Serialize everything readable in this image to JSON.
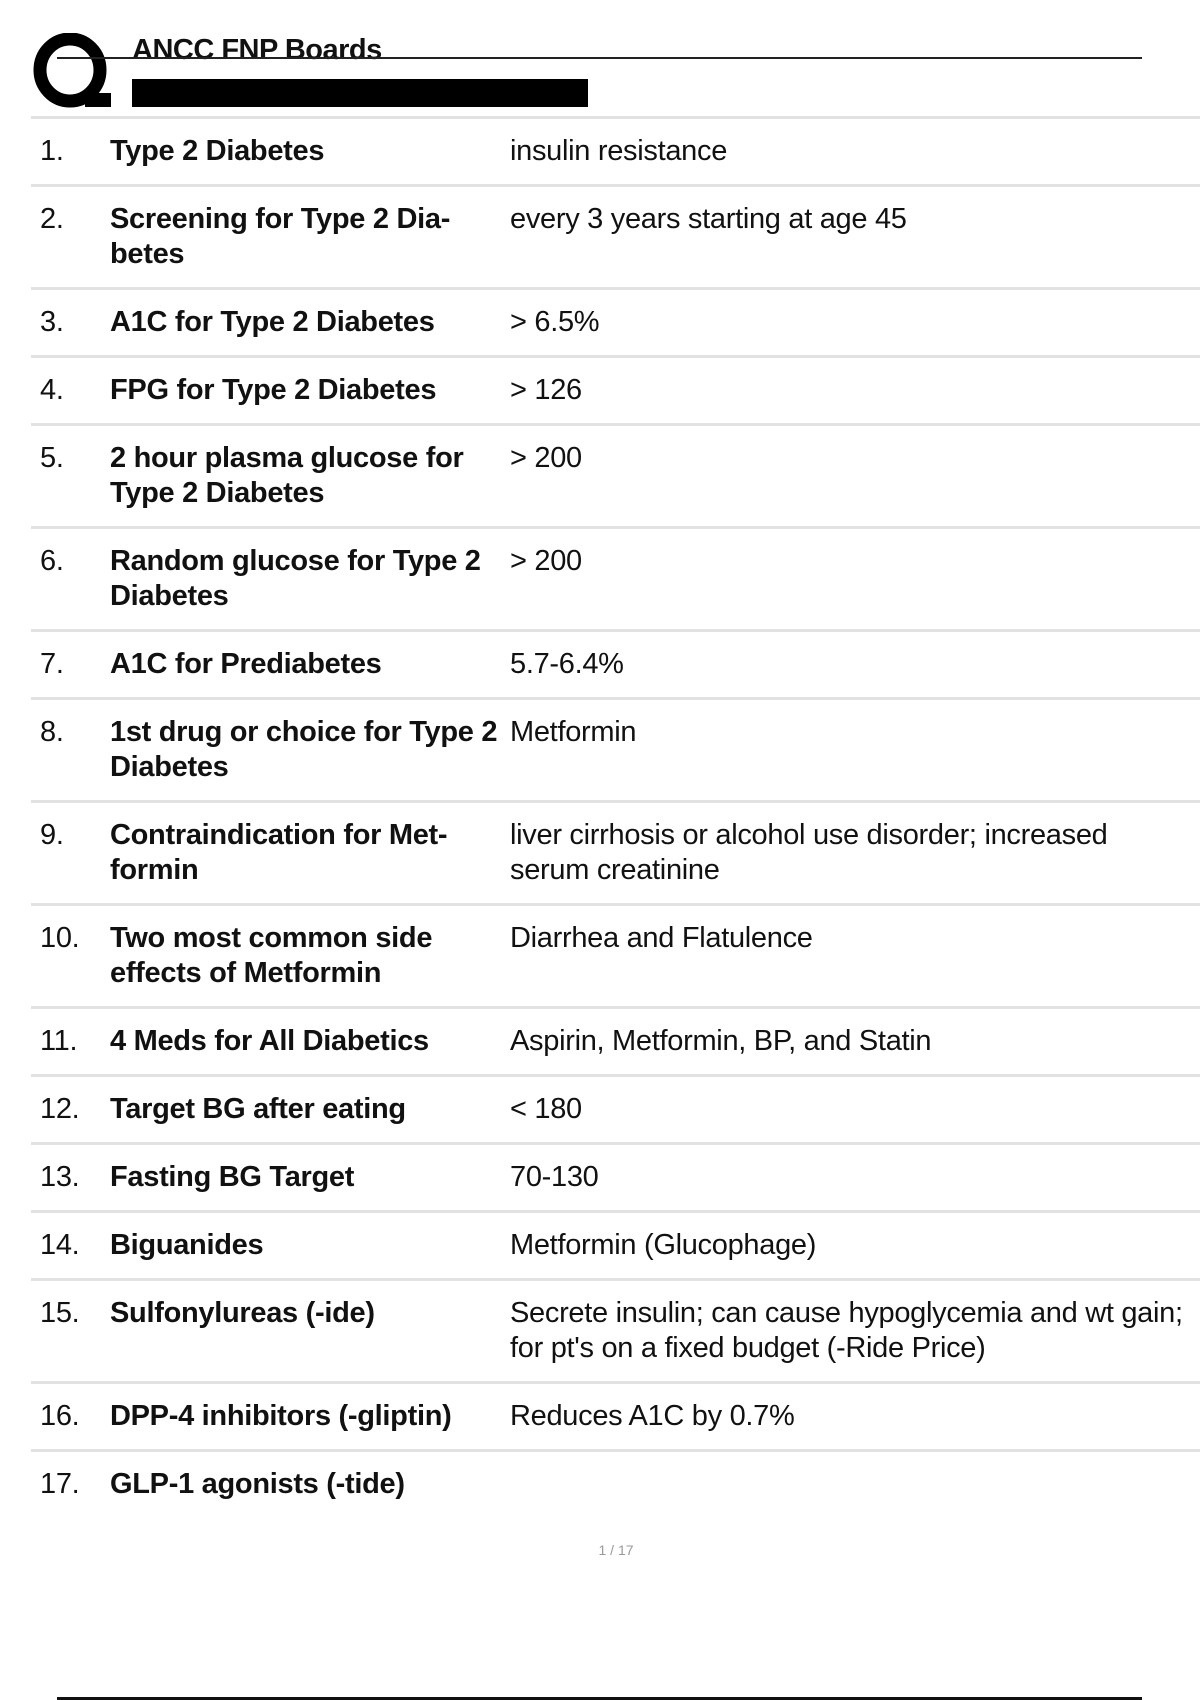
{
  "header": {
    "logo_letter": "Q",
    "title": "ANCC FNP Boards"
  },
  "rows": [
    {
      "num": "1.",
      "term": "Type 2 Diabetes",
      "def": "insulin resistance"
    },
    {
      "num": "2.",
      "term": "Screening for Type 2 Dia­betes",
      "def": "every 3 years starting at age 45"
    },
    {
      "num": "3.",
      "term": "A1C for Type 2 Diabetes",
      "def": "> 6.5%"
    },
    {
      "num": "4.",
      "term": "FPG for Type 2 Diabetes",
      "def": "> 126"
    },
    {
      "num": "5.",
      "term": "2 hour plasma glucose for Type 2 Diabetes",
      "def": "> 200"
    },
    {
      "num": "6.",
      "term": "Random glucose for Type 2 Diabetes",
      "def": "> 200"
    },
    {
      "num": "7.",
      "term": "A1C for Prediabetes",
      "def": "5.7-6.4%"
    },
    {
      "num": "8.",
      "term": "1st drug or choice for Type 2 Diabetes",
      "def": "Metformin"
    },
    {
      "num": "9.",
      "term": "Contraindication for Met­formin",
      "def": "liver cirrhosis or alcohol use disorder; increased serum creatinine"
    },
    {
      "num": "10.",
      "term": "Two most common side effects of Metformin",
      "def": "Diarrhea and Flatulence"
    },
    {
      "num": "11.",
      "term": "4 Meds for All Diabetics",
      "def": "Aspirin, Metformin, BP, and Statin"
    },
    {
      "num": "12.",
      "term": "Target BG after eating",
      "def": "< 180"
    },
    {
      "num": "13.",
      "term": "Fasting BG Target",
      "def": "70-130"
    },
    {
      "num": "14.",
      "term": "Biguanides",
      "def": "Metformin (Glucophage)"
    },
    {
      "num": "15.",
      "term": "Sulfonylureas (-ide)",
      "def": "Secrete insulin; can cause hypoglycemia and wt gain; for pt's on a fixed budget (-Ride Price)"
    },
    {
      "num": "16.",
      "term": "DPP-4 inhibitors (-gliptin)",
      "def": "Reduces A1C by 0.7%"
    },
    {
      "num": "17.",
      "term": "GLP-1 agonists (-tide)",
      "def": ""
    }
  ],
  "footer": {
    "page_number": "1 / 17"
  }
}
